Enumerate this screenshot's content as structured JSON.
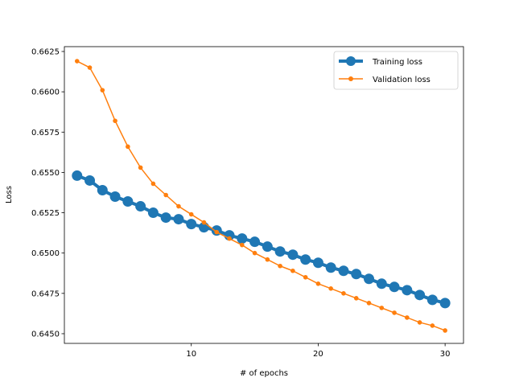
{
  "chart_data": {
    "type": "line",
    "xlabel": "# of epochs",
    "ylabel": "Loss",
    "xlim": [
      0,
      31.45
    ],
    "ylim": [
      0.6444,
      0.6628
    ],
    "xticks": [
      10,
      20,
      30
    ],
    "yticks": [
      0.645,
      0.6475,
      0.65,
      0.6525,
      0.655,
      0.6575,
      0.66,
      0.6625
    ],
    "ytick_labels": [
      "0.6450",
      "0.6475",
      "0.6500",
      "0.6525",
      "0.6550",
      "0.6575",
      "0.6600",
      "0.6625"
    ],
    "grid": false,
    "legend_position": "top-right",
    "x": [
      1,
      2,
      3,
      4,
      5,
      6,
      7,
      8,
      9,
      10,
      11,
      12,
      13,
      14,
      15,
      16,
      17,
      18,
      19,
      20,
      21,
      22,
      23,
      24,
      25,
      26,
      27,
      28,
      29,
      30
    ],
    "series": [
      {
        "name": "Training loss",
        "color": "#1f77b4",
        "marker": "large-circle",
        "values": [
          0.6548,
          0.6545,
          0.6539,
          0.6535,
          0.6532,
          0.6529,
          0.6525,
          0.6522,
          0.6521,
          0.6518,
          0.6516,
          0.6514,
          0.6511,
          0.6509,
          0.6507,
          0.6504,
          0.6501,
          0.6499,
          0.6496,
          0.6494,
          0.6491,
          0.6489,
          0.6487,
          0.6484,
          0.6481,
          0.6479,
          0.6477,
          0.6474,
          0.6471,
          0.6469
        ]
      },
      {
        "name": "Validation loss",
        "color": "#ff7f0e",
        "marker": "small-circle",
        "values": [
          0.6619,
          0.6615,
          0.6601,
          0.6582,
          0.6566,
          0.6553,
          0.6543,
          0.6536,
          0.6529,
          0.6524,
          0.6519,
          0.6513,
          0.6509,
          0.6505,
          0.65,
          0.6496,
          0.6492,
          0.6489,
          0.6485,
          0.6481,
          0.6478,
          0.6475,
          0.6472,
          0.6469,
          0.6466,
          0.6463,
          0.646,
          0.6457,
          0.6455,
          0.6452
        ]
      }
    ]
  }
}
